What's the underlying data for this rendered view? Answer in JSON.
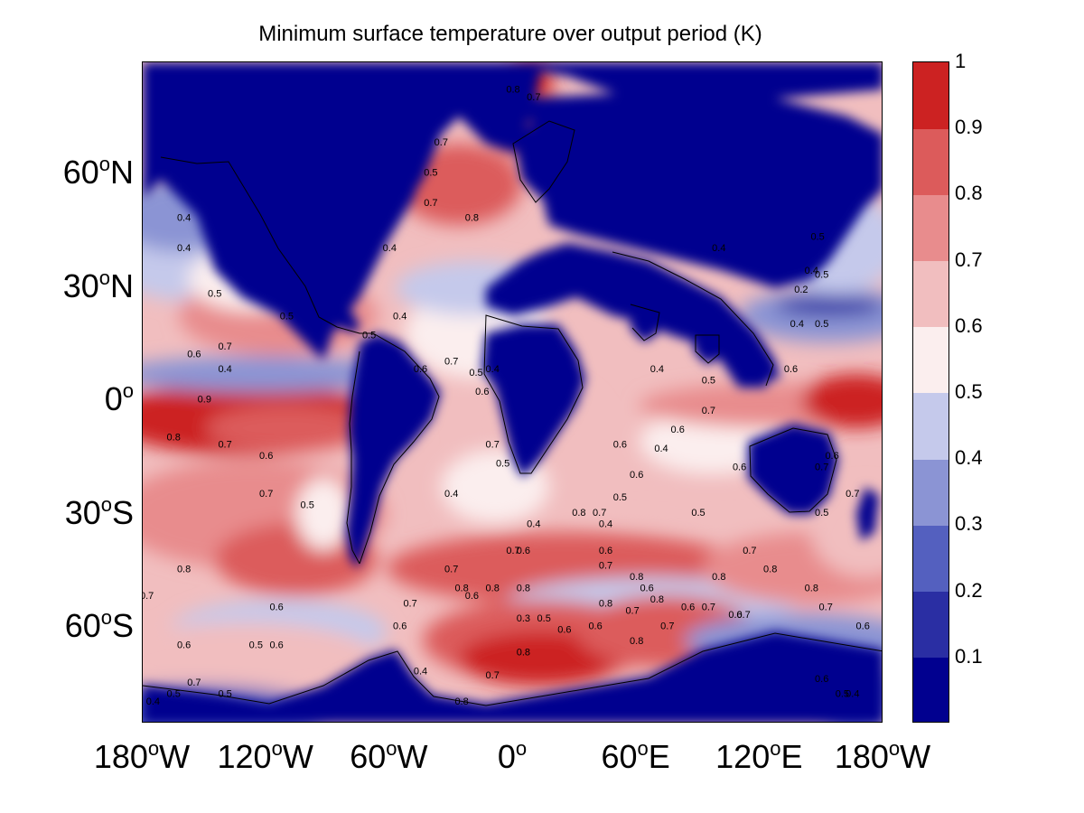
{
  "title": "Minimum surface temperature over output period (K)",
  "colors": {
    "palette": [
      "#01008f",
      "#2a2ea3",
      "#5460bf",
      "#8b94d4",
      "#c5c9eb",
      "#fbeeee",
      "#f1bebf",
      "#e88c8d",
      "#dc5b5b",
      "#cc2222"
    ],
    "ocean_base": "#f1bebf",
    "land": "#01008f",
    "coast": "#000000"
  },
  "map": {
    "lat_labels": [
      {
        "deg": "60",
        "hemi": "N",
        "lat": 60
      },
      {
        "deg": "30",
        "hemi": "N",
        "lat": 30
      },
      {
        "deg": "0",
        "hemi": "",
        "lat": 0
      },
      {
        "deg": "30",
        "hemi": "S",
        "lat": -30
      },
      {
        "deg": "60",
        "hemi": "S",
        "lat": -60
      }
    ],
    "lon_labels": [
      {
        "deg": "180",
        "hemi": "W",
        "lon": -180
      },
      {
        "deg": "120",
        "hemi": "W",
        "lon": -120
      },
      {
        "deg": "60",
        "hemi": "W",
        "lon": -60
      },
      {
        "deg": "0",
        "hemi": "",
        "lon": 0
      },
      {
        "deg": "60",
        "hemi": "E",
        "lon": 60
      },
      {
        "deg": "120",
        "hemi": "E",
        "lon": 120
      },
      {
        "deg": "180",
        "hemi": "W",
        "lon": 180
      }
    ],
    "contour_labels": [
      {
        "text": "0.9",
        "lon": -150,
        "lat": 0
      },
      {
        "text": "0.8",
        "lon": -165,
        "lat": -10
      },
      {
        "text": "0.7",
        "lon": -140,
        "lat": -12
      },
      {
        "text": "0.6",
        "lon": -120,
        "lat": -15
      },
      {
        "text": "0.7",
        "lon": -120,
        "lat": -25
      },
      {
        "text": "0.5",
        "lon": -100,
        "lat": -28
      },
      {
        "text": "0.8",
        "lon": -160,
        "lat": -45
      },
      {
        "text": "0.7",
        "lon": -178,
        "lat": -52
      },
      {
        "text": "0.6",
        "lon": -115,
        "lat": -55
      },
      {
        "text": "0.6",
        "lon": -160,
        "lat": -65
      },
      {
        "text": "0.5",
        "lon": -125,
        "lat": -65
      },
      {
        "text": "0.6",
        "lon": -115,
        "lat": -65
      },
      {
        "text": "0.7",
        "lon": -155,
        "lat": -75
      },
      {
        "text": "0.5",
        "lon": -140,
        "lat": -78
      },
      {
        "text": "0.4",
        "lon": -160,
        "lat": 48
      },
      {
        "text": "0.4",
        "lon": -160,
        "lat": 40
      },
      {
        "text": "0.5",
        "lon": -145,
        "lat": 28
      },
      {
        "text": "0.6",
        "lon": -155,
        "lat": 12
      },
      {
        "text": "0.4",
        "lon": -140,
        "lat": 8
      },
      {
        "text": "0.7",
        "lon": -140,
        "lat": 14
      },
      {
        "text": "0.5",
        "lon": -110,
        "lat": 22
      },
      {
        "text": "0.4",
        "lon": -60,
        "lat": 40
      },
      {
        "text": "0.5",
        "lon": -70,
        "lat": 17
      },
      {
        "text": "0.4",
        "lon": -55,
        "lat": 22
      },
      {
        "text": "0.6",
        "lon": -45,
        "lat": 8
      },
      {
        "text": "0.7",
        "lon": -30,
        "lat": 10
      },
      {
        "text": "0.5",
        "lon": -18,
        "lat": 7
      },
      {
        "text": "0.4",
        "lon": -10,
        "lat": 8
      },
      {
        "text": "0.6",
        "lon": -15,
        "lat": 2
      },
      {
        "text": "0.7",
        "lon": -35,
        "lat": 68
      },
      {
        "text": "0.8",
        "lon": -20,
        "lat": 48
      },
      {
        "text": "0.5",
        "lon": -40,
        "lat": 60
      },
      {
        "text": "0.7",
        "lon": -40,
        "lat": 52
      },
      {
        "text": "0.8",
        "lon": 0,
        "lat": 82
      },
      {
        "text": "0.7",
        "lon": 10,
        "lat": 80
      },
      {
        "text": "0.7",
        "lon": -10,
        "lat": -12
      },
      {
        "text": "0.5",
        "lon": -5,
        "lat": -17
      },
      {
        "text": "0.4",
        "lon": -30,
        "lat": -25
      },
      {
        "text": "0.7",
        "lon": 0,
        "lat": -40
      },
      {
        "text": "0.6",
        "lon": 5,
        "lat": -40
      },
      {
        "text": "0.4",
        "lon": 10,
        "lat": -33
      },
      {
        "text": "0.7",
        "lon": -30,
        "lat": -45
      },
      {
        "text": "0.8",
        "lon": -25,
        "lat": -50
      },
      {
        "text": "0.6",
        "lon": -20,
        "lat": -52
      },
      {
        "text": "0.7",
        "lon": -50,
        "lat": -54
      },
      {
        "text": "0.8",
        "lon": 5,
        "lat": -50
      },
      {
        "text": "0.8",
        "lon": -10,
        "lat": -50
      },
      {
        "text": "0.3",
        "lon": 5,
        "lat": -58
      },
      {
        "text": "0.5",
        "lon": 15,
        "lat": -58
      },
      {
        "text": "0.6",
        "lon": 25,
        "lat": -61
      },
      {
        "text": "0.6",
        "lon": 40,
        "lat": -60
      },
      {
        "text": "0.8",
        "lon": 45,
        "lat": -54
      },
      {
        "text": "0.8",
        "lon": 5,
        "lat": -67
      },
      {
        "text": "0.7",
        "lon": -10,
        "lat": -73
      },
      {
        "text": "0.8",
        "lon": -25,
        "lat": -80
      },
      {
        "text": "0.7",
        "lon": 42,
        "lat": -30
      },
      {
        "text": "0.8",
        "lon": 32,
        "lat": -30
      },
      {
        "text": "0.6",
        "lon": 45,
        "lat": -40
      },
      {
        "text": "0.7",
        "lon": 45,
        "lat": -44
      },
      {
        "text": "0.8",
        "lon": 60,
        "lat": -47
      },
      {
        "text": "0.6",
        "lon": 65,
        "lat": -50
      },
      {
        "text": "0.7",
        "lon": 58,
        "lat": -56
      },
      {
        "text": "0.8",
        "lon": 70,
        "lat": -53
      },
      {
        "text": "0.7",
        "lon": 75,
        "lat": -60
      },
      {
        "text": "0.8",
        "lon": 60,
        "lat": -64
      },
      {
        "text": "0.6",
        "lon": 85,
        "lat": -55
      },
      {
        "text": "0.7",
        "lon": 95,
        "lat": -55
      },
      {
        "text": "0.8",
        "lon": 100,
        "lat": -47
      },
      {
        "text": "0.7",
        "lon": 115,
        "lat": -40
      },
      {
        "text": "0.8",
        "lon": 125,
        "lat": -45
      },
      {
        "text": "0.8",
        "lon": 145,
        "lat": -50
      },
      {
        "text": "0.7",
        "lon": 152,
        "lat": -55
      },
      {
        "text": "0.6",
        "lon": 170,
        "lat": -60
      },
      {
        "text": "0.6",
        "lon": 108,
        "lat": -57
      },
      {
        "text": "0.7",
        "lon": 112,
        "lat": -57
      },
      {
        "text": "0.6",
        "lon": 150,
        "lat": -74
      },
      {
        "text": "0.5",
        "lon": 160,
        "lat": -78
      },
      {
        "text": "0.4",
        "lon": 165,
        "lat": -78
      },
      {
        "text": "0.6",
        "lon": 60,
        "lat": -20
      },
      {
        "text": "0.6",
        "lon": 52,
        "lat": -12
      },
      {
        "text": "0.4",
        "lon": 72,
        "lat": -13
      },
      {
        "text": "0.5",
        "lon": 52,
        "lat": -26
      },
      {
        "text": "0.5",
        "lon": 90,
        "lat": -30
      },
      {
        "text": "0.6",
        "lon": 110,
        "lat": -18
      },
      {
        "text": "0.4",
        "lon": 70,
        "lat": 8
      },
      {
        "text": "0.6",
        "lon": 80,
        "lat": -8
      },
      {
        "text": "0.7",
        "lon": 95,
        "lat": -3
      },
      {
        "text": "0.5",
        "lon": 95,
        "lat": 5
      },
      {
        "text": "0.6",
        "lon": 135,
        "lat": 8
      },
      {
        "text": "0.4",
        "lon": 138,
        "lat": 20
      },
      {
        "text": "0.5",
        "lon": 150,
        "lat": 20
      },
      {
        "text": "0.4",
        "lon": 145,
        "lat": 34
      },
      {
        "text": "0.5",
        "lon": 148,
        "lat": 43
      },
      {
        "text": "0.2",
        "lon": 140,
        "lat": 29
      },
      {
        "text": "0.5",
        "lon": 150,
        "lat": 33
      },
      {
        "text": "0.7",
        "lon": 150,
        "lat": -18
      },
      {
        "text": "0.7",
        "lon": 165,
        "lat": -25
      },
      {
        "text": "0.5",
        "lon": 150,
        "lat": -30
      },
      {
        "text": "0.4",
        "lon": 100,
        "lat": 40
      },
      {
        "text": "0.6",
        "lon": 155,
        "lat": -15
      },
      {
        "text": "0.4",
        "lon": 45,
        "lat": -33
      },
      {
        "text": "0.5",
        "lon": -165,
        "lat": -78
      },
      {
        "text": "0.4",
        "lon": -175,
        "lat": -80
      },
      {
        "text": "0.6",
        "lon": -55,
        "lat": -60
      },
      {
        "text": "0.4",
        "lon": -45,
        "lat": -72
      }
    ]
  },
  "colorbar": {
    "ticks": [
      "1",
      "0.9",
      "0.8",
      "0.7",
      "0.6",
      "0.5",
      "0.4",
      "0.3",
      "0.2",
      "0.1"
    ],
    "tick_values": [
      1.0,
      0.9,
      0.8,
      0.7,
      0.6,
      0.5,
      0.4,
      0.3,
      0.2,
      0.1
    ],
    "range": [
      0.0,
      1.0
    ]
  }
}
